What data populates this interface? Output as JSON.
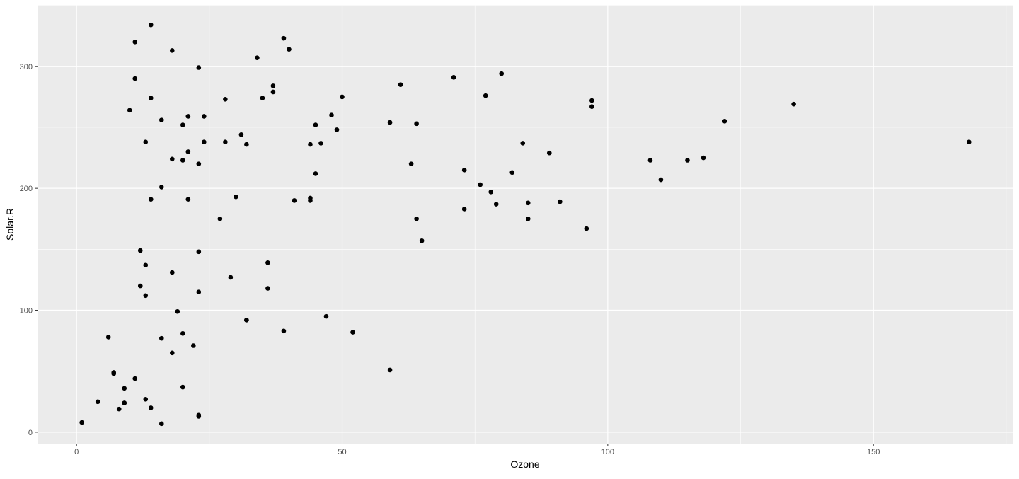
{
  "chart_data": {
    "type": "scatter",
    "title": "",
    "xlabel": "Ozone",
    "ylabel": "Solar.R",
    "xlim": [
      -7.35,
      176.35
    ],
    "ylim": [
      -9.35,
      350.35
    ],
    "x_ticks": [
      0,
      50,
      100,
      150
    ],
    "y_ticks": [
      0,
      100,
      200,
      300
    ],
    "x_tick_labels": [
      "0",
      "50",
      "100",
      "150"
    ],
    "y_tick_labels": [
      "0",
      "100",
      "200",
      "300"
    ],
    "grid": true,
    "colors": {
      "panel": "#ebebeb",
      "grid": "#ffffff",
      "point": "#000000",
      "tick_text": "#4d4d4d"
    },
    "points": [
      [
        41,
        190
      ],
      [
        36,
        118
      ],
      [
        12,
        149
      ],
      [
        18,
        313
      ],
      [
        23,
        299
      ],
      [
        19,
        99
      ],
      [
        8,
        19
      ],
      [
        16,
        256
      ],
      [
        11,
        290
      ],
      [
        14,
        274
      ],
      [
        18,
        65
      ],
      [
        14,
        334
      ],
      [
        34,
        307
      ],
      [
        6,
        78
      ],
      [
        11,
        44
      ],
      [
        1,
        8
      ],
      [
        11,
        320
      ],
      [
        4,
        25
      ],
      [
        32,
        92
      ],
      [
        23,
        13
      ],
      [
        45,
        252
      ],
      [
        115,
        223
      ],
      [
        37,
        279
      ],
      [
        29,
        127
      ],
      [
        71,
        291
      ],
      [
        39,
        323
      ],
      [
        23,
        148
      ],
      [
        21,
        191
      ],
      [
        37,
        284
      ],
      [
        20,
        37
      ],
      [
        12,
        120
      ],
      [
        13,
        137
      ],
      [
        135,
        269
      ],
      [
        49,
        248
      ],
      [
        32,
        236
      ],
      [
        64,
        175
      ],
      [
        40,
        314
      ],
      [
        77,
        276
      ],
      [
        97,
        267
      ],
      [
        97,
        272
      ],
      [
        85,
        175
      ],
      [
        10,
        264
      ],
      [
        27,
        175
      ],
      [
        7,
        48
      ],
      [
        48,
        260
      ],
      [
        35,
        274
      ],
      [
        61,
        285
      ],
      [
        79,
        187
      ],
      [
        63,
        220
      ],
      [
        16,
        7
      ],
      [
        80,
        294
      ],
      [
        108,
        223
      ],
      [
        20,
        81
      ],
      [
        52,
        82
      ],
      [
        82,
        213
      ],
      [
        50,
        275
      ],
      [
        64,
        253
      ],
      [
        59,
        254
      ],
      [
        39,
        83
      ],
      [
        9,
        24
      ],
      [
        16,
        77
      ],
      [
        122,
        255
      ],
      [
        89,
        229
      ],
      [
        110,
        207
      ],
      [
        44,
        192
      ],
      [
        28,
        273
      ],
      [
        65,
        157
      ],
      [
        22,
        71
      ],
      [
        59,
        51
      ],
      [
        23,
        115
      ],
      [
        31,
        244
      ],
      [
        44,
        190
      ],
      [
        21,
        259
      ],
      [
        9,
        36
      ],
      [
        45,
        212
      ],
      [
        168,
        238
      ],
      [
        73,
        215
      ],
      [
        76,
        203
      ],
      [
        118,
        225
      ],
      [
        84,
        237
      ],
      [
        85,
        188
      ],
      [
        96,
        167
      ],
      [
        78,
        197
      ],
      [
        73,
        183
      ],
      [
        91,
        189
      ],
      [
        47,
        95
      ],
      [
        32,
        92
      ],
      [
        20,
        252
      ],
      [
        23,
        220
      ],
      [
        21,
        230
      ],
      [
        24,
        259
      ],
      [
        44,
        236
      ],
      [
        21,
        259
      ],
      [
        28,
        238
      ],
      [
        9,
        24
      ],
      [
        13,
        112
      ],
      [
        46,
        237
      ],
      [
        18,
        224
      ],
      [
        13,
        27
      ],
      [
        24,
        238
      ],
      [
        16,
        201
      ],
      [
        13,
        238
      ],
      [
        23,
        14
      ],
      [
        36,
        139
      ],
      [
        7,
        49
      ],
      [
        14,
        20
      ],
      [
        30,
        193
      ],
      [
        14,
        191
      ],
      [
        18,
        131
      ],
      [
        20,
        223
      ]
    ]
  }
}
